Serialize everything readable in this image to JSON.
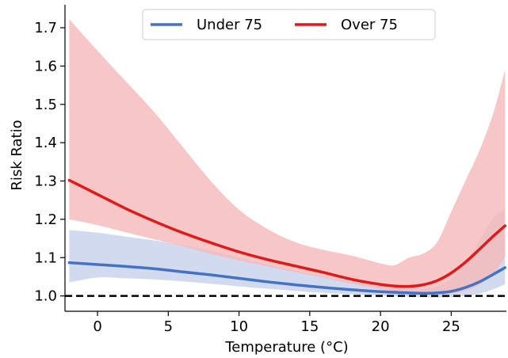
{
  "chart_data": {
    "type": "line",
    "title": "",
    "xlabel": "Temperature (°C)",
    "ylabel": "Risk Ratio",
    "xlim": [
      -2.3,
      28.9
    ],
    "ylim": [
      0.96,
      1.76
    ],
    "xticks": [
      0,
      5,
      10,
      15,
      20,
      25
    ],
    "yticks": [
      1.0,
      1.1,
      1.2,
      1.3,
      1.4,
      1.5,
      1.6,
      1.7
    ],
    "xtick_labels": [
      "0",
      "5",
      "10",
      "15",
      "20",
      "25"
    ],
    "ytick_labels": [
      "1.0",
      "1.1",
      "1.2",
      "1.3",
      "1.4",
      "1.5",
      "1.6",
      "1.7"
    ],
    "reference_line": {
      "y": 1.0,
      "style": "dashed",
      "color": "#000000"
    },
    "legend": {
      "placement": "top-center",
      "entries": [
        "Under 75",
        "Over 75"
      ]
    },
    "grid": false,
    "series": [
      {
        "name": "Under 75",
        "color": "#4472c4",
        "band_color": "#c5d1ea",
        "x": [
          -2,
          0,
          2,
          4,
          6,
          8,
          10,
          12,
          14,
          16,
          18,
          20,
          22,
          23,
          24,
          25,
          26,
          27,
          28,
          28.8
        ],
        "y": [
          1.087,
          1.082,
          1.077,
          1.071,
          1.063,
          1.055,
          1.046,
          1.037,
          1.029,
          1.022,
          1.016,
          1.011,
          1.008,
          1.007,
          1.008,
          1.012,
          1.022,
          1.037,
          1.057,
          1.074
        ],
        "lower": [
          1.035,
          1.048,
          1.046,
          1.043,
          1.038,
          1.032,
          1.025,
          1.019,
          1.013,
          1.008,
          1.004,
          1.001,
          0.998,
          0.997,
          0.996,
          0.997,
          1.0,
          1.006,
          1.018,
          1.03
        ],
        "upper": [
          1.172,
          1.165,
          1.155,
          1.145,
          1.132,
          1.118,
          1.1,
          1.082,
          1.066,
          1.05,
          1.036,
          1.025,
          1.018,
          1.018,
          1.025,
          1.045,
          1.085,
          1.145,
          1.205,
          1.228
        ]
      },
      {
        "name": "Over 75",
        "color": "#e0191b",
        "band_color": "#f5b8b8",
        "x": [
          -2,
          0,
          2,
          4,
          6,
          8,
          10,
          12,
          14,
          16,
          18,
          20,
          21,
          22,
          23,
          24,
          25,
          26,
          27,
          28,
          28.8
        ],
        "y": [
          1.302,
          1.265,
          1.228,
          1.195,
          1.165,
          1.139,
          1.115,
          1.095,
          1.078,
          1.061,
          1.043,
          1.03,
          1.026,
          1.025,
          1.029,
          1.04,
          1.06,
          1.088,
          1.122,
          1.157,
          1.183
        ],
        "lower": [
          1.2,
          1.185,
          1.166,
          1.148,
          1.13,
          1.11,
          1.093,
          1.077,
          1.062,
          1.047,
          1.032,
          1.018,
          1.012,
          1.008,
          1.005,
          1.004,
          1.006,
          1.014,
          1.03,
          1.06,
          1.1
        ],
        "upper": [
          1.722,
          1.64,
          1.56,
          1.48,
          1.39,
          1.3,
          1.225,
          1.175,
          1.14,
          1.12,
          1.105,
          1.085,
          1.08,
          1.1,
          1.11,
          1.14,
          1.22,
          1.3,
          1.38,
          1.48,
          1.59
        ]
      }
    ]
  }
}
